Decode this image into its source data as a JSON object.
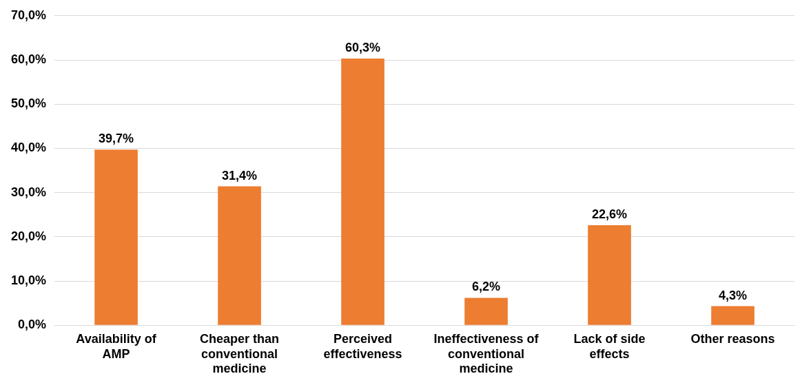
{
  "chart_data": {
    "type": "bar",
    "categories": [
      "Availability of AMP",
      "Cheaper than conventional medicine",
      "Perceived effectiveness",
      "Ineffectiveness of conventional medicine",
      "Lack of side effects",
      "Other reasons"
    ],
    "values": [
      39.7,
      31.4,
      60.3,
      6.2,
      22.6,
      4.3
    ],
    "value_labels": [
      "39,7%",
      "31,4%",
      "60,3%",
      "6,2%",
      "22,6%",
      "4,3%"
    ],
    "color": "#ed7d31",
    "ylim": [
      0,
      70
    ],
    "yticks": [
      {
        "value": 0,
        "label": "0,0%"
      },
      {
        "value": 10,
        "label": "10,0%"
      },
      {
        "value": 20,
        "label": "20,0%"
      },
      {
        "value": 30,
        "label": "30,0%"
      },
      {
        "value": 40,
        "label": "40,0%"
      },
      {
        "value": 50,
        "label": "50,0%"
      },
      {
        "value": 60,
        "label": "60,0%"
      },
      {
        "value": 70,
        "label": "70,0%"
      }
    ],
    "grid": "y",
    "legend": false
  }
}
